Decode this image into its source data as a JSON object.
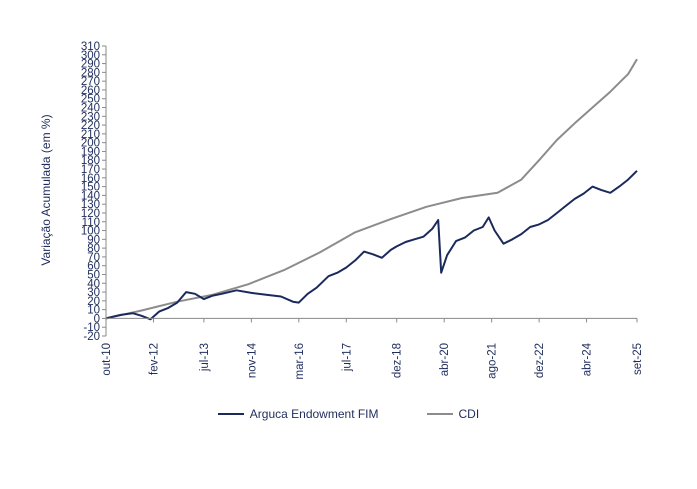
{
  "chart_data": {
    "type": "line",
    "title": "",
    "ylabel": "Variação Acumulada (em %)",
    "xlabel": "",
    "ylim": [
      -20,
      310
    ],
    "yticks": [
      -20,
      -10,
      0,
      10,
      20,
      30,
      40,
      50,
      60,
      70,
      80,
      90,
      100,
      110,
      120,
      130,
      140,
      150,
      160,
      170,
      180,
      190,
      200,
      210,
      220,
      230,
      240,
      250,
      260,
      270,
      280,
      290,
      300,
      310
    ],
    "ytick_labels": [
      "-20",
      "-10",
      "0",
      "10",
      "20",
      "30",
      "40",
      "50",
      "60",
      "70",
      "80",
      "90",
      "100",
      "110",
      "120",
      "130",
      "140",
      "150",
      "160",
      "170",
      "180",
      "190",
      "200",
      "210",
      "220",
      "230",
      "240",
      "250",
      "260",
      "270",
      "280",
      "290",
      "300",
      "310"
    ],
    "x_range": [
      "2010-10",
      "2025-09"
    ],
    "x_ticks": [
      {
        "label": "out-10",
        "date": "2010-10"
      },
      {
        "label": "fev-12",
        "date": "2012-02"
      },
      {
        "label": "jul-13",
        "date": "2013-07"
      },
      {
        "label": "nov-14",
        "date": "2014-11"
      },
      {
        "label": "mar-16",
        "date": "2016-03"
      },
      {
        "label": "jul-17",
        "date": "2017-07"
      },
      {
        "label": "dez-18",
        "date": "2018-12"
      },
      {
        "label": "abr-20",
        "date": "2020-04"
      },
      {
        "label": "ago-21",
        "date": "2021-08"
      },
      {
        "label": "dez-22",
        "date": "2022-12"
      },
      {
        "label": "abr-24",
        "date": "2024-04"
      },
      {
        "label": "set-25",
        "date": "2025-09"
      }
    ],
    "grid": false,
    "legend_position": "bottom",
    "series": [
      {
        "name": "Arguca Endowment FIM",
        "color": "#1b2a5c",
        "points": [
          [
            "2010-10",
            0
          ],
          [
            "2011-03",
            4
          ],
          [
            "2011-07",
            6
          ],
          [
            "2011-10",
            3
          ],
          [
            "2012-01",
            -1
          ],
          [
            "2012-04",
            8
          ],
          [
            "2012-07",
            12
          ],
          [
            "2012-10",
            18
          ],
          [
            "2013-01",
            30
          ],
          [
            "2013-04",
            28
          ],
          [
            "2013-07",
            22
          ],
          [
            "2013-10",
            26
          ],
          [
            "2014-01",
            28
          ],
          [
            "2014-06",
            32
          ],
          [
            "2014-11",
            29
          ],
          [
            "2015-04",
            27
          ],
          [
            "2015-09",
            25
          ],
          [
            "2016-01",
            19
          ],
          [
            "2016-03",
            18
          ],
          [
            "2016-06",
            28
          ],
          [
            "2016-09",
            35
          ],
          [
            "2017-01",
            48
          ],
          [
            "2017-04",
            52
          ],
          [
            "2017-07",
            58
          ],
          [
            "2017-10",
            66
          ],
          [
            "2018-01",
            76
          ],
          [
            "2018-04",
            73
          ],
          [
            "2018-07",
            69
          ],
          [
            "2018-10",
            78
          ],
          [
            "2018-12",
            82
          ],
          [
            "2019-03",
            87
          ],
          [
            "2019-06",
            90
          ],
          [
            "2019-09",
            93
          ],
          [
            "2019-12",
            102
          ],
          [
            "2020-02",
            112
          ],
          [
            "2020-03",
            52
          ],
          [
            "2020-05",
            72
          ],
          [
            "2020-08",
            88
          ],
          [
            "2020-11",
            92
          ],
          [
            "2021-02",
            100
          ],
          [
            "2021-05",
            104
          ],
          [
            "2021-07",
            115
          ],
          [
            "2021-09",
            100
          ],
          [
            "2021-12",
            85
          ],
          [
            "2022-03",
            90
          ],
          [
            "2022-06",
            96
          ],
          [
            "2022-09",
            104
          ],
          [
            "2022-12",
            107
          ],
          [
            "2023-03",
            112
          ],
          [
            "2023-06",
            120
          ],
          [
            "2023-09",
            128
          ],
          [
            "2023-12",
            136
          ],
          [
            "2024-03",
            142
          ],
          [
            "2024-06",
            150
          ],
          [
            "2024-09",
            146
          ],
          [
            "2024-12",
            143
          ],
          [
            "2025-03",
            150
          ],
          [
            "2025-06",
            158
          ],
          [
            "2025-09",
            168
          ]
        ]
      },
      {
        "name": "CDI",
        "color": "#8c8c8c",
        "points": [
          [
            "2010-10",
            0
          ],
          [
            "2011-10",
            9
          ],
          [
            "2012-10",
            19
          ],
          [
            "2013-10",
            27
          ],
          [
            "2014-10",
            39
          ],
          [
            "2015-10",
            55
          ],
          [
            "2016-10",
            75
          ],
          [
            "2017-10",
            98
          ],
          [
            "2018-10",
            113
          ],
          [
            "2019-10",
            127
          ],
          [
            "2020-10",
            137
          ],
          [
            "2021-10",
            143
          ],
          [
            "2022-06",
            158
          ],
          [
            "2022-12",
            180
          ],
          [
            "2023-06",
            203
          ],
          [
            "2023-12",
            222
          ],
          [
            "2024-06",
            240
          ],
          [
            "2024-12",
            258
          ],
          [
            "2025-06",
            278
          ],
          [
            "2025-09",
            295
          ]
        ]
      }
    ]
  }
}
